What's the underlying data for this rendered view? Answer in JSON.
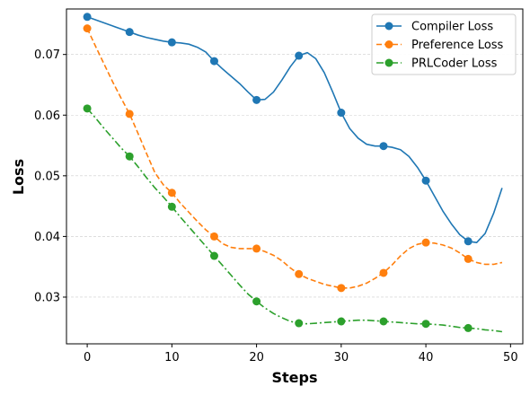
{
  "chart_data": {
    "type": "line",
    "title": "",
    "xlabel": "Steps",
    "ylabel": "Loss",
    "xlim": [
      -2.45,
      51.45
    ],
    "ylim": [
      0.0223,
      0.0775
    ],
    "xticks": [
      0,
      10,
      20,
      30,
      40,
      50
    ],
    "xtick_labels": [
      "0",
      "10",
      "20",
      "30",
      "40",
      "50"
    ],
    "yticks": [
      0.03,
      0.04,
      0.05,
      0.06,
      0.07
    ],
    "ytick_labels": [
      "0.03",
      "0.04",
      "0.05",
      "0.06",
      "0.07"
    ],
    "grid": "horizontal dashed",
    "legend_position": "top-right",
    "series": [
      {
        "name": "Compiler Loss",
        "color": "#1f77b4",
        "linestyle": "solid",
        "x": [
          0,
          1,
          2,
          3,
          4,
          5,
          6,
          7,
          8,
          9,
          10,
          11,
          12,
          13,
          14,
          15,
          16,
          17,
          18,
          19,
          20,
          21,
          22,
          23,
          24,
          25,
          26,
          27,
          28,
          29,
          30,
          31,
          32,
          33,
          34,
          35,
          36,
          37,
          38,
          39,
          40,
          41,
          42,
          43,
          44,
          45,
          46,
          47,
          48,
          49
        ],
        "y": [
          0.0762,
          0.0757,
          0.0752,
          0.0747,
          0.0742,
          0.0737,
          0.0732,
          0.0728,
          0.0725,
          0.0722,
          0.072,
          0.0719,
          0.0717,
          0.0712,
          0.0704,
          0.0689,
          0.0676,
          0.0664,
          0.0652,
          0.0638,
          0.0625,
          0.0626,
          0.0638,
          0.0658,
          0.068,
          0.0698,
          0.0703,
          0.0693,
          0.067,
          0.0638,
          0.0604,
          0.0578,
          0.0562,
          0.0552,
          0.0549,
          0.0549,
          0.0547,
          0.0543,
          0.0532,
          0.0514,
          0.0492,
          0.0467,
          0.0442,
          0.0421,
          0.0403,
          0.0392,
          0.039,
          0.0405,
          0.0438,
          0.048
        ],
        "marker_x": [
          0,
          5,
          10,
          15,
          20,
          25,
          30,
          35,
          40,
          45
        ],
        "marker_y": [
          0.0762,
          0.0737,
          0.072,
          0.0689,
          0.0625,
          0.0698,
          0.0604,
          0.0549,
          0.0492,
          0.0392
        ]
      },
      {
        "name": "Preference Loss",
        "color": "#ff7f0e",
        "linestyle": "dashed",
        "x": [
          0,
          1,
          2,
          3,
          4,
          5,
          6,
          7,
          8,
          9,
          10,
          11,
          12,
          13,
          14,
          15,
          16,
          17,
          18,
          19,
          20,
          21,
          22,
          23,
          24,
          25,
          26,
          27,
          28,
          29,
          30,
          31,
          32,
          33,
          34,
          35,
          36,
          37,
          38,
          39,
          40,
          41,
          42,
          43,
          44,
          45,
          46,
          47,
          48,
          49
        ],
        "y": [
          0.0743,
          0.0713,
          0.0684,
          0.0655,
          0.0628,
          0.0602,
          0.057,
          0.0537,
          0.0505,
          0.0485,
          0.0472,
          0.0455,
          0.044,
          0.0425,
          0.0411,
          0.04,
          0.0388,
          0.0382,
          0.038,
          0.038,
          0.038,
          0.0375,
          0.0369,
          0.036,
          0.0348,
          0.0338,
          0.0331,
          0.0326,
          0.0321,
          0.0318,
          0.0315,
          0.0315,
          0.0318,
          0.0323,
          0.0331,
          0.034,
          0.0353,
          0.0368,
          0.038,
          0.0387,
          0.039,
          0.0389,
          0.0386,
          0.0381,
          0.0373,
          0.0363,
          0.0357,
          0.0354,
          0.0354,
          0.0357
        ],
        "marker_x": [
          0,
          5,
          10,
          15,
          20,
          25,
          30,
          35,
          40,
          45
        ],
        "marker_y": [
          0.0743,
          0.0602,
          0.0472,
          0.04,
          0.038,
          0.0338,
          0.0315,
          0.034,
          0.039,
          0.0363
        ]
      },
      {
        "name": "PRLCoder Loss",
        "color": "#2ca02c",
        "linestyle": "dashdot",
        "x": [
          0,
          1,
          2,
          3,
          4,
          5,
          6,
          7,
          8,
          9,
          10,
          11,
          12,
          13,
          14,
          15,
          16,
          17,
          18,
          19,
          20,
          21,
          22,
          23,
          24,
          25,
          26,
          27,
          28,
          29,
          30,
          31,
          32,
          33,
          34,
          35,
          36,
          37,
          38,
          39,
          40,
          41,
          42,
          43,
          44,
          45,
          46,
          47,
          48,
          49
        ],
        "y": [
          0.0611,
          0.0595,
          0.0578,
          0.0562,
          0.0546,
          0.0532,
          0.0515,
          0.0497,
          0.048,
          0.0465,
          0.0449,
          0.0432,
          0.0416,
          0.04,
          0.0384,
          0.0368,
          0.0352,
          0.0336,
          0.032,
          0.0305,
          0.0293,
          0.0282,
          0.0273,
          0.0266,
          0.026,
          0.0257,
          0.0256,
          0.0257,
          0.0258,
          0.0259,
          0.026,
          0.0261,
          0.0262,
          0.0262,
          0.0261,
          0.026,
          0.0259,
          0.0258,
          0.0257,
          0.0256,
          0.0256,
          0.0255,
          0.0254,
          0.0252,
          0.025,
          0.0249,
          0.0248,
          0.0246,
          0.0245,
          0.0243
        ],
        "marker_x": [
          0,
          5,
          10,
          15,
          20,
          25,
          30,
          35,
          40,
          45
        ],
        "marker_y": [
          0.0611,
          0.0532,
          0.0449,
          0.0368,
          0.0293,
          0.0257,
          0.026,
          0.026,
          0.0256,
          0.0249
        ]
      }
    ]
  }
}
